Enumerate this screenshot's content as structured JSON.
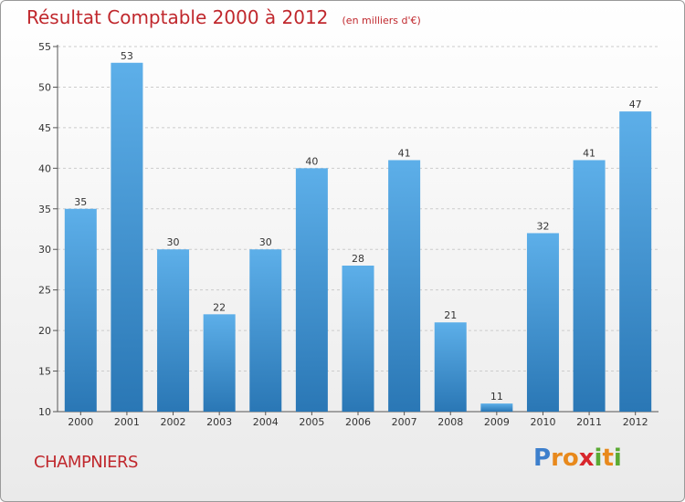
{
  "title": "Résultat Comptable 2000 à 2012",
  "subtitle": "(en milliers d'€)",
  "town": "CHAMPNIERS",
  "logo": {
    "text": "Proxiti",
    "letters": [
      {
        "ch": "P",
        "color": "#3d7fcc"
      },
      {
        "ch": "r",
        "color": "#e8891c"
      },
      {
        "ch": "o",
        "color": "#e8891c"
      },
      {
        "ch": "x",
        "color": "#d8262c"
      },
      {
        "ch": "i",
        "color": "#5aaa33"
      },
      {
        "ch": "t",
        "color": "#e8891c"
      },
      {
        "ch": "i",
        "color": "#5aaa33"
      }
    ]
  },
  "colors": {
    "title": "#c0282d",
    "bar_light": "#5dafe9",
    "bar_dark": "#2a77b5",
    "grid": "#cccccc"
  },
  "chart_data": {
    "type": "bar",
    "title": "Résultat Comptable 2000 à 2012",
    "xlabel": "",
    "ylabel": "en milliers d'€",
    "categories": [
      "2000",
      "2001",
      "2002",
      "2003",
      "2004",
      "2005",
      "2006",
      "2007",
      "2008",
      "2009",
      "2010",
      "2011",
      "2012"
    ],
    "values": [
      35,
      53,
      30,
      22,
      30,
      40,
      28,
      41,
      21,
      11,
      32,
      41,
      47
    ],
    "ylim": [
      10,
      55
    ],
    "yticks": [
      10,
      15,
      20,
      25,
      30,
      35,
      40,
      45,
      50,
      55
    ],
    "grid": true
  }
}
